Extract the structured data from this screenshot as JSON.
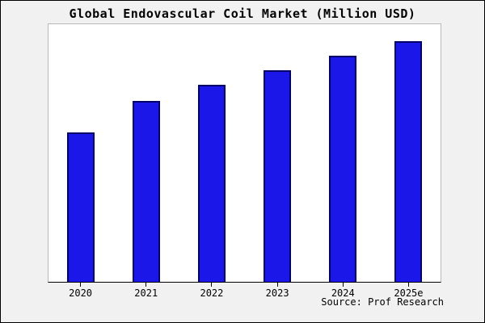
{
  "title": "Global Endovascular Coil Market (Million USD)",
  "source": "Source: Prof Research",
  "colors": {
    "bar_fill": "#1a17e8",
    "bar_border": "#000066",
    "page_background": "#f1f1f1",
    "plot_background": "#ffffff"
  },
  "chart_data": {
    "type": "bar",
    "title": "Global Endovascular Coil Market (Million USD)",
    "categories": [
      "2020",
      "2021",
      "2022",
      "2023",
      "2024",
      "2025e"
    ],
    "values": [
      62,
      75,
      82,
      88,
      94,
      100
    ],
    "value_scale": "relative height, % of tallest bar (no y-axis scale shown in chart)",
    "xlabel": "",
    "ylabel": "",
    "ylim": [
      0,
      108
    ],
    "grid": false,
    "legend": false,
    "annotation": "Source: Prof Research"
  }
}
